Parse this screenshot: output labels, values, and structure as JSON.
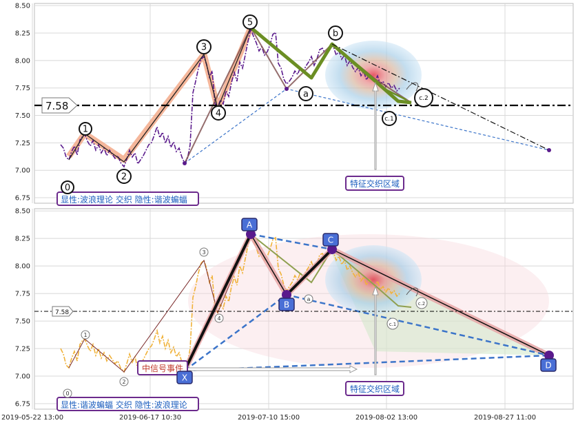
{
  "chart_data": [
    {
      "type": "line",
      "panel": "top",
      "ylim": [
        6.7,
        8.52
      ],
      "yticks": [
        "8.50",
        "8.25",
        "8.00",
        "7.75",
        "7.50",
        "7.25",
        "7.00",
        "6.75"
      ],
      "grid": true,
      "price_label": "7.58",
      "price_level": 7.575,
      "caption": "显性:波浪理论 交织 隐性:谐波蝙蝠",
      "zone_label": "特征交织区域",
      "wave_points": [
        {
          "label": "0",
          "date": "2019-05-24",
          "value": 6.92
        },
        {
          "label": "1",
          "date": "2019-05-28",
          "value": 7.3
        },
        {
          "label": "2",
          "date": "2019-06-14",
          "value": 6.98
        },
        {
          "label": "3",
          "date": "2019-07-01",
          "value": 8.07
        },
        {
          "label": "4",
          "date": "2019-07-03",
          "value": 7.55
        },
        {
          "label": "5",
          "date": "2019-07-10",
          "value": 8.3
        },
        {
          "label": "a",
          "date": "2019-07-20",
          "value": 7.73
        },
        {
          "label": "b",
          "date": "2019-07-26",
          "value": 8.15
        },
        {
          "label": "c.1",
          "date": "2019-08-05",
          "value": 7.62
        },
        {
          "label": "c.2",
          "date": "2019-08-08",
          "value": 7.6
        }
      ],
      "harmonic_points": [
        {
          "date": "2019-06-26",
          "value": 7.04
        },
        {
          "date": "2019-07-10",
          "value": 8.3
        },
        {
          "date": "2019-07-20",
          "value": 7.73
        },
        {
          "date": "2019-07-26",
          "value": 8.15
        },
        {
          "date": "2019-08-31",
          "value": 7.17
        }
      ]
    },
    {
      "type": "line",
      "panel": "bottom",
      "ylim": [
        6.7,
        8.52
      ],
      "yticks": [
        "8.50",
        "8.25",
        "8.00",
        "7.75",
        "7.50",
        "7.25",
        "7.00",
        "6.75"
      ],
      "grid": true,
      "price_label": "7.58",
      "price_level": 7.575,
      "caption": "显性:谐波蝙蝠 交织 隐性:波浪理论",
      "zone_label": "特征交织区域",
      "signal_label": "中信号事件",
      "xabcd": [
        {
          "label": "X",
          "date": "2019-06-26",
          "value": 7.04
        },
        {
          "label": "A",
          "date": "2019-07-10",
          "value": 8.29
        },
        {
          "label": "B",
          "date": "2019-07-20",
          "value": 7.73
        },
        {
          "label": "C",
          "date": "2019-07-26",
          "value": 8.14
        },
        {
          "label": "D",
          "date": "2019-08-31",
          "value": 7.17
        }
      ],
      "wave_labels": [
        "3",
        "4",
        "1",
        "2",
        "0",
        "a",
        "c.1",
        "c.2"
      ]
    }
  ],
  "x_axis": {
    "ticks": [
      "2019-05-22 13:00",
      "2019-06-17 10:30",
      "2019-07-10 15:00",
      "2019-08-02 13:00",
      "2019-08-27 11:00"
    ]
  }
}
